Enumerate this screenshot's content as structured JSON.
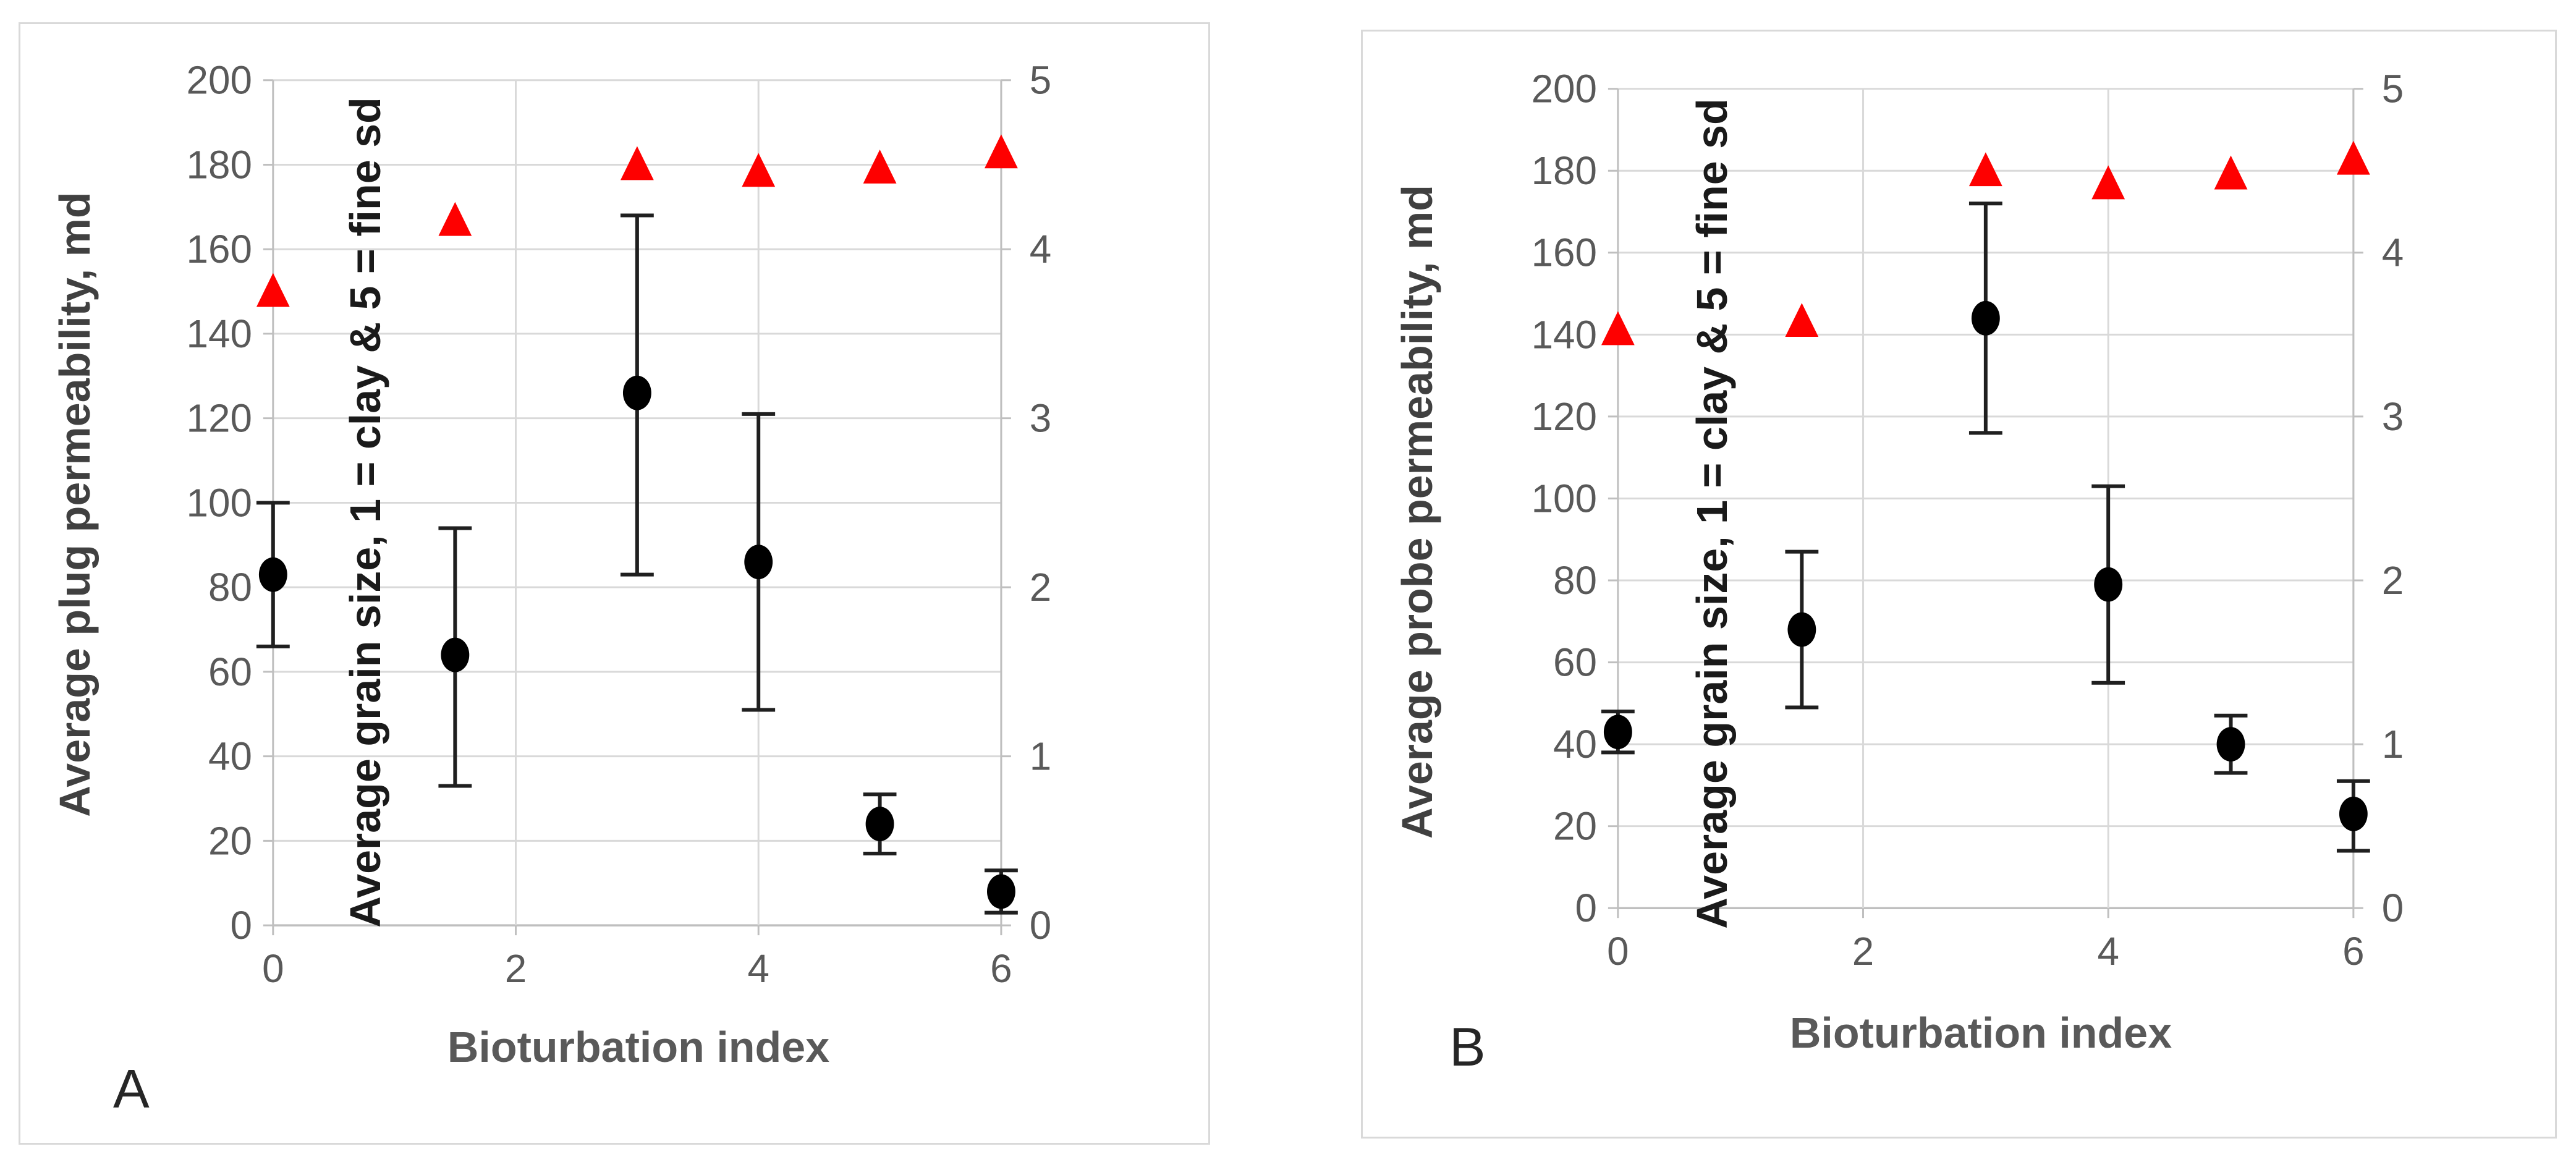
{
  "figure": {
    "background_color": "#ffffff",
    "panel_border_color": "#d9d9d9",
    "gridline_color": "#d9d9d9",
    "axis_color": "#bfbfbf",
    "tick_label_color": "#595959"
  },
  "chart_data": [
    {
      "type": "scatter",
      "panel_label": "A",
      "xlabel": "Bioturbation index",
      "x": {
        "range": [
          0,
          6
        ],
        "ticks": [
          0,
          2,
          4,
          6
        ]
      },
      "y_left": {
        "label": "Average plug permeability, md",
        "range": [
          0,
          200
        ],
        "ticks": [
          0,
          20,
          40,
          60,
          80,
          100,
          120,
          140,
          160,
          180,
          200
        ]
      },
      "y_right": {
        "label": "Average grain size, 1 = clay & 5 = fine sd",
        "range": [
          0,
          5
        ],
        "ticks": [
          0,
          1,
          2,
          3,
          4,
          5
        ]
      },
      "grid": true,
      "legend": "none",
      "series": [
        {
          "name": "plug permeability",
          "axis": "left",
          "marker": "circle",
          "color": "#000000",
          "error_bar_color": "#1f1f1f",
          "points": [
            {
              "x": 0,
              "y": 83,
              "lo": 66,
              "hi": 100
            },
            {
              "x": 1.5,
              "y": 64,
              "lo": 33,
              "hi": 94
            },
            {
              "x": 3,
              "y": 126,
              "lo": 83,
              "hi": 168
            },
            {
              "x": 4,
              "y": 86,
              "lo": 51,
              "hi": 121
            },
            {
              "x": 5,
              "y": 24,
              "lo": 17,
              "hi": 31
            },
            {
              "x": 6,
              "y": 8,
              "lo": 3,
              "hi": 13
            }
          ]
        },
        {
          "name": "grain size",
          "axis": "right",
          "marker": "triangle",
          "color": "#fe0000",
          "points": [
            {
              "x": 0,
              "y": 3.75
            },
            {
              "x": 1.5,
              "y": 4.17
            },
            {
              "x": 3,
              "y": 4.5
            },
            {
              "x": 4,
              "y": 4.46
            },
            {
              "x": 5,
              "y": 4.48
            },
            {
              "x": 6,
              "y": 4.57
            }
          ]
        }
      ]
    },
    {
      "type": "scatter",
      "panel_label": "B",
      "xlabel": "Bioturbation index",
      "x": {
        "range": [
          0,
          6
        ],
        "ticks": [
          0,
          2,
          4,
          6
        ]
      },
      "y_left": {
        "label": "Average probe permeability, md",
        "range": [
          0,
          200
        ],
        "ticks": [
          0,
          20,
          40,
          60,
          80,
          100,
          120,
          140,
          160,
          180,
          200
        ]
      },
      "y_right": {
        "label": "Average grain size, 1 = clay & 5 = fine sd",
        "range": [
          0,
          5
        ],
        "ticks": [
          0,
          1,
          2,
          3,
          4,
          5
        ]
      },
      "grid": true,
      "legend": "none",
      "series": [
        {
          "name": "probe permeability",
          "axis": "left",
          "marker": "circle",
          "color": "#000000",
          "error_bar_color": "#1f1f1f",
          "points": [
            {
              "x": 0,
              "y": 43,
              "lo": 38,
              "hi": 48
            },
            {
              "x": 1.5,
              "y": 68,
              "lo": 49,
              "hi": 87
            },
            {
              "x": 3,
              "y": 144,
              "lo": 116,
              "hi": 172
            },
            {
              "x": 4,
              "y": 79,
              "lo": 55,
              "hi": 103
            },
            {
              "x": 5,
              "y": 40,
              "lo": 33,
              "hi": 47
            },
            {
              "x": 6,
              "y": 23,
              "lo": 14,
              "hi": 31
            }
          ]
        },
        {
          "name": "grain size",
          "axis": "right",
          "marker": "triangle",
          "color": "#fe0000",
          "points": [
            {
              "x": 0,
              "y": 3.53
            },
            {
              "x": 1.5,
              "y": 3.58
            },
            {
              "x": 3,
              "y": 4.5
            },
            {
              "x": 4,
              "y": 4.42
            },
            {
              "x": 5,
              "y": 4.48
            },
            {
              "x": 6,
              "y": 4.57
            }
          ]
        }
      ]
    }
  ]
}
